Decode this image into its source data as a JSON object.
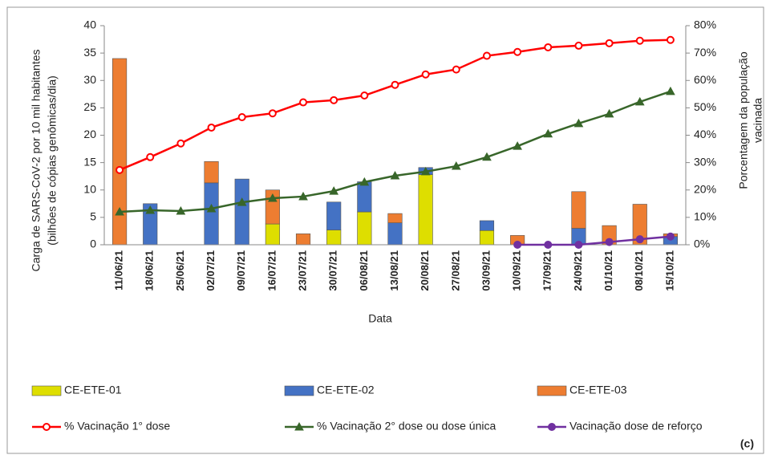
{
  "chart_data": {
    "type": "bar",
    "x_label": "Data",
    "y_label": [
      "Carga de SARS-CoV-2 por 10 mil habitantes",
      "(bilhões de cópias genômicas/dia)"
    ],
    "y2_label": [
      "Porcentagem da população",
      "vacinada"
    ],
    "annotation": "(c)",
    "categories": [
      "11/06/21",
      "18/06/21",
      "25/06/21",
      "02/07/21",
      "09/07/21",
      "16/07/21",
      "23/07/21",
      "30/07/21",
      "06/08/21",
      "13/08/21",
      "20/08/21",
      "27/08/21",
      "03/09/21",
      "10/09/21",
      "17/09/21",
      "24/09/21",
      "01/10/21",
      "08/10/21",
      "15/10/21"
    ],
    "ylim": [
      0,
      40
    ],
    "yticks": [
      0,
      5,
      10,
      15,
      20,
      25,
      30,
      35,
      40
    ],
    "y2lim": [
      0,
      80
    ],
    "y2ticks": [
      {
        "value": 0,
        "label": "0%"
      },
      {
        "value": 10,
        "label": "10%"
      },
      {
        "value": 20,
        "label": "20%"
      },
      {
        "value": 30,
        "label": "30%"
      },
      {
        "value": 40,
        "label": "40%"
      },
      {
        "value": 50,
        "label": "50%"
      },
      {
        "value": 60,
        "label": "60%"
      },
      {
        "value": 70,
        "label": "70%"
      },
      {
        "value": 80,
        "label": "80%"
      }
    ],
    "series": [
      {
        "name": "CE-ETE-01",
        "type": "bar",
        "color": "#dede00",
        "values": [
          0,
          0,
          0,
          0,
          0,
          3.8,
          0,
          2.7,
          6,
          0,
          12.8,
          0,
          2.6,
          0,
          0,
          0,
          0,
          0,
          0
        ]
      },
      {
        "name": "CE-ETE-02",
        "type": "bar",
        "color": "#4472c4",
        "values": [
          0,
          7.5,
          0,
          11.3,
          12,
          0,
          0,
          5.1,
          5.5,
          4,
          1.3,
          0,
          1.8,
          0,
          0,
          3,
          0,
          0,
          1.5
        ]
      },
      {
        "name": "CE-ETE-03",
        "type": "bar",
        "color": "#ed7d31",
        "values": [
          34,
          0,
          0,
          3.9,
          0,
          6.2,
          2,
          0,
          0,
          1.7,
          0,
          0,
          0,
          1.7,
          0,
          6.7,
          3.5,
          7.4,
          0.5
        ]
      },
      {
        "name": "% Vacinação 1° dose",
        "type": "line",
        "axis": "y2",
        "color": "#ff0000",
        "marker": "circle-open",
        "values": [
          27.3,
          32,
          37,
          42.8,
          46.6,
          48,
          52,
          52.8,
          54.5,
          58.4,
          62.2,
          64,
          69,
          70.4,
          72.1,
          72.7,
          73.6,
          74.5,
          74.8
        ]
      },
      {
        "name": "% Vacinação 2° dose ou dose única",
        "type": "line",
        "axis": "y2",
        "color": "#38662a",
        "marker": "triangle",
        "values": [
          12,
          12.6,
          12.3,
          13.2,
          15.5,
          17,
          17.6,
          19.6,
          22.9,
          25.2,
          26.7,
          28.7,
          32,
          36,
          40.5,
          44.3,
          47.8,
          52.2,
          56
        ]
      },
      {
        "name": "Vacinação dose de reforço",
        "type": "line",
        "axis": "y2",
        "color": "#7030a0",
        "marker": "circle",
        "values": [
          null,
          null,
          null,
          null,
          null,
          null,
          null,
          null,
          null,
          null,
          null,
          null,
          null,
          0,
          0,
          0,
          1,
          2,
          3
        ]
      }
    ]
  }
}
